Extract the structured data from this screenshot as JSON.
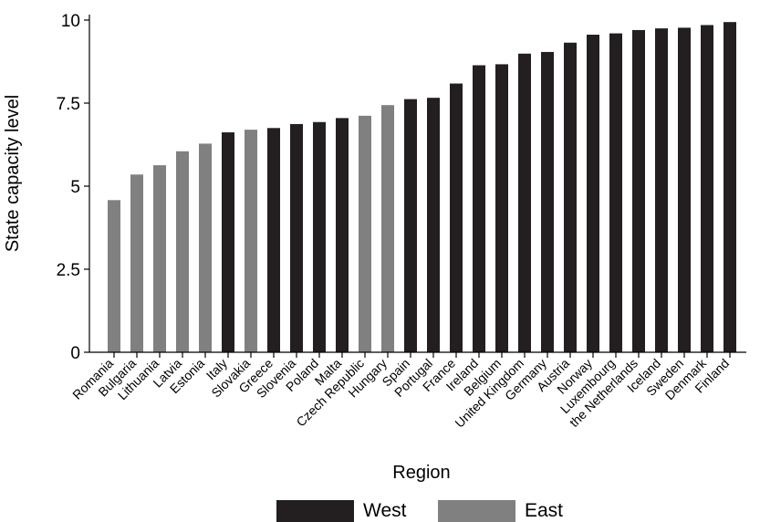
{
  "chart_data": {
    "type": "bar",
    "xlabel": "Region",
    "ylabel": "State capacity level",
    "ylim": [
      0,
      10
    ],
    "yticks": [
      0,
      2.5,
      5,
      7.5,
      10
    ],
    "y_tick_labels": [
      "0",
      "2.5",
      "5",
      "7.5",
      "10"
    ],
    "grid": false,
    "legend_position": "bottom",
    "categories": [
      "Romania",
      "Bulgaria",
      "Lithuania",
      "Latvia",
      "Estonia",
      "Italy",
      "Slovakia",
      "Greece",
      "Slovenia",
      "Poland",
      "Malta",
      "Czech Republic",
      "Hungary",
      "Spain",
      "Portugal",
      "France",
      "Ireland",
      "Belgium",
      "United Kingdom",
      "Germany",
      "Austria",
      "Norway",
      "Luxembourg",
      "the Netherlands",
      "Iceland",
      "Sweden",
      "Denmark",
      "Finland"
    ],
    "values": [
      4.58,
      5.35,
      5.63,
      6.05,
      6.28,
      6.62,
      6.7,
      6.75,
      6.87,
      6.93,
      7.05,
      7.12,
      7.44,
      7.62,
      7.66,
      8.09,
      8.64,
      8.67,
      8.99,
      9.04,
      9.32,
      9.56,
      9.6,
      9.7,
      9.75,
      9.77,
      9.85,
      9.94
    ],
    "groups": [
      "East",
      "East",
      "East",
      "East",
      "East",
      "West",
      "East",
      "West",
      "West",
      "West",
      "West",
      "East",
      "East",
      "West",
      "West",
      "West",
      "West",
      "West",
      "West",
      "West",
      "West",
      "West",
      "West",
      "West",
      "West",
      "West",
      "West",
      "West"
    ],
    "legend": [
      {
        "name": "West",
        "color": "#231f20"
      },
      {
        "name": "East",
        "color": "#808080"
      }
    ]
  }
}
